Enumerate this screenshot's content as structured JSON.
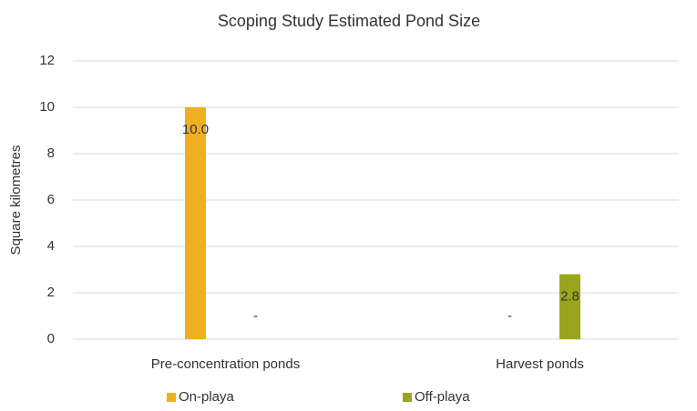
{
  "chart_data": {
    "type": "bar",
    "title": "Scoping Study Estimated Pond Size",
    "y_label": "Square kilometres",
    "categories": [
      "Pre-concentration ponds",
      "Harvest ponds"
    ],
    "series": [
      {
        "name": "On-playa",
        "color": "#f0ae21",
        "values": [
          10.0,
          0
        ],
        "value_labels": [
          "10.0",
          "-"
        ]
      },
      {
        "name": "Off-playa",
        "color": "#9ba51c",
        "values": [
          0,
          2.8
        ],
        "value_labels": [
          "-",
          "2.8"
        ]
      }
    ],
    "ylim": [
      0,
      12
    ],
    "yticks": [
      0,
      2,
      4,
      6,
      8,
      10,
      12
    ],
    "grid": true,
    "legend": "bottom"
  }
}
